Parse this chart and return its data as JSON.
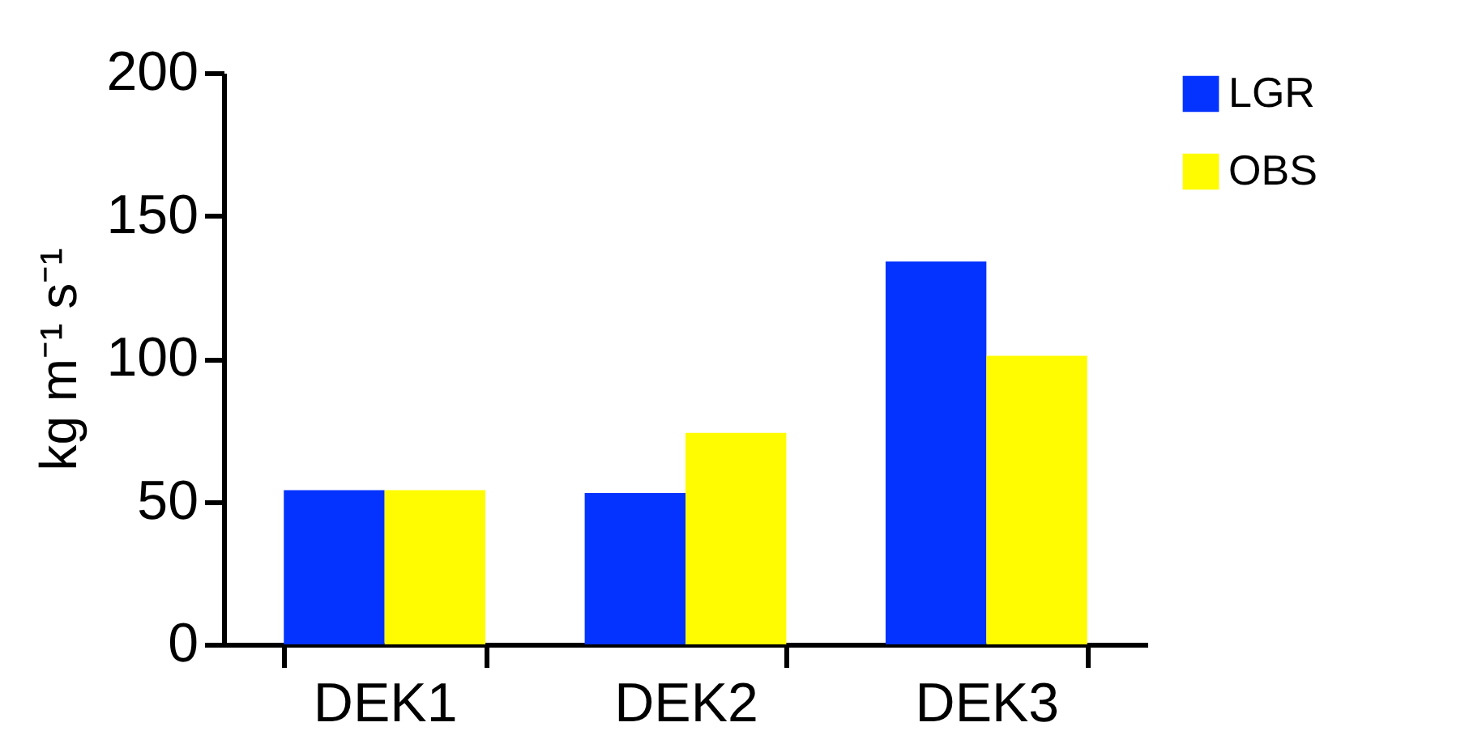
{
  "chart_data": {
    "type": "bar",
    "ylabel": "kg m⁻¹ s⁻¹",
    "categories": [
      "DEK1",
      "DEK2",
      "DEK3"
    ],
    "series": [
      {
        "name": "LGR",
        "color": "#0433ff",
        "values": [
          54,
          53,
          134
        ]
      },
      {
        "name": "OBS",
        "color": "#fffb00",
        "values": [
          54,
          74,
          101
        ]
      }
    ],
    "ylim": [
      0,
      200
    ],
    "yticks": [
      0,
      50,
      100,
      150,
      200
    ],
    "grid": false,
    "legend": "right"
  }
}
